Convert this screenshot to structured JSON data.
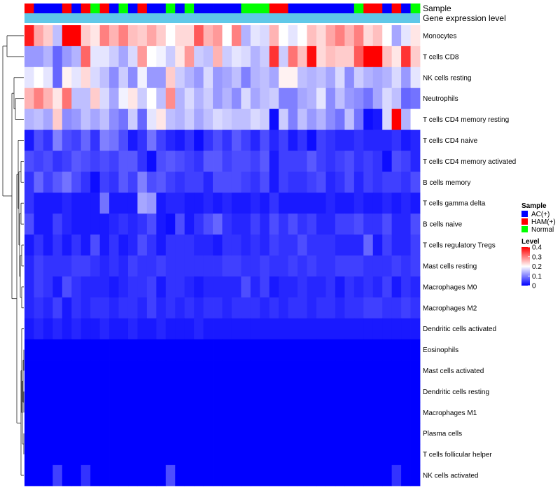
{
  "chart_data": {
    "type": "heatmap",
    "title": "",
    "annotations": {
      "sample_label": "Sample",
      "gene_label": "Gene expression level"
    },
    "legend": {
      "sample_title": "Sample",
      "sample_entries": [
        {
          "label": "AC(+)",
          "color": "#0000ff"
        },
        {
          "label": "HAM(+)",
          "color": "#ff0000"
        },
        {
          "label": "Normal",
          "color": "#00ff00"
        }
      ],
      "level_title": "Level",
      "level_ticks": [
        "0.4",
        "0.3",
        "0.2",
        "0.1",
        "0"
      ],
      "level_range": [
        0,
        0.4
      ],
      "colors": {
        "low": "#0000ff",
        "mid": "#ffffff",
        "high": "#ff0000",
        "gene_bar": "#5fc8e8"
      },
      "placement": "right"
    },
    "samples": [
      "HAM(+)",
      "AC(+)",
      "AC(+)",
      "AC(+)",
      "HAM(+)",
      "AC(+)",
      "HAM(+)",
      "Normal",
      "HAM(+)",
      "AC(+)",
      "Normal",
      "AC(+)",
      "HAM(+)",
      "AC(+)",
      "AC(+)",
      "Normal",
      "AC(+)",
      "Normal",
      "AC(+)",
      "AC(+)",
      "AC(+)",
      "AC(+)",
      "AC(+)",
      "Normal",
      "Normal",
      "Normal",
      "HAM(+)",
      "HAM(+)",
      "AC(+)",
      "AC(+)",
      "AC(+)",
      "AC(+)",
      "AC(+)",
      "AC(+)",
      "AC(+)",
      "Normal",
      "HAM(+)",
      "HAM(+)",
      "AC(+)",
      "HAM(+)",
      "AC(+)",
      "Normal"
    ],
    "rows": [
      {
        "name": "Monocytes",
        "values": [
          0.38,
          0.27,
          0.24,
          0.15,
          0.4,
          0.4,
          0.24,
          0.22,
          0.3,
          0.26,
          0.3,
          0.25,
          0.24,
          0.27,
          0.24,
          0.2,
          0.23,
          0.23,
          0.33,
          0.26,
          0.28,
          0.2,
          0.3,
          0.14,
          0.18,
          0.17,
          0.26,
          0.2,
          0.18,
          0.2,
          0.25,
          0.23,
          0.27,
          0.3,
          0.26,
          0.3,
          0.23,
          0.25,
          0.2,
          0.13,
          0.18,
          0.22
        ]
      },
      {
        "name": "T cells CD8",
        "values": [
          0.12,
          0.12,
          0.14,
          0.08,
          0.12,
          0.14,
          0.32,
          0.18,
          0.18,
          0.16,
          0.13,
          0.17,
          0.28,
          0.2,
          0.19,
          0.16,
          0.22,
          0.28,
          0.16,
          0.15,
          0.26,
          0.16,
          0.18,
          0.17,
          0.14,
          0.16,
          0.36,
          0.16,
          0.31,
          0.25,
          0.39,
          0.23,
          0.25,
          0.24,
          0.24,
          0.33,
          0.4,
          0.4,
          0.25,
          0.22,
          0.36,
          0.24
        ]
      },
      {
        "name": "NK cells resting",
        "values": [
          0.18,
          0.2,
          0.18,
          0.08,
          0.21,
          0.18,
          0.23,
          0.17,
          0.15,
          0.11,
          0.16,
          0.11,
          0.19,
          0.12,
          0.12,
          0.24,
          0.16,
          0.14,
          0.12,
          0.17,
          0.12,
          0.13,
          0.15,
          0.1,
          0.14,
          0.15,
          0.13,
          0.21,
          0.21,
          0.15,
          0.14,
          0.15,
          0.13,
          0.17,
          0.11,
          0.16,
          0.14,
          0.13,
          0.14,
          0.17,
          0.12,
          0.18
        ]
      },
      {
        "name": "Neutrophils",
        "values": [
          0.26,
          0.3,
          0.26,
          0.22,
          0.31,
          0.15,
          0.15,
          0.24,
          0.17,
          0.13,
          0.19,
          0.22,
          0.16,
          0.2,
          0.15,
          0.29,
          0.14,
          0.17,
          0.14,
          0.16,
          0.12,
          0.14,
          0.11,
          0.17,
          0.13,
          0.15,
          0.16,
          0.1,
          0.1,
          0.13,
          0.14,
          0.18,
          0.11,
          0.15,
          0.12,
          0.11,
          0.09,
          0.13,
          0.17,
          0.15,
          0.08,
          0.09
        ]
      },
      {
        "name": "T cells CD4 memory resting",
        "values": [
          0.14,
          0.15,
          0.13,
          0.24,
          0.11,
          0.12,
          0.15,
          0.13,
          0.15,
          0.11,
          0.09,
          0.16,
          0.08,
          0.18,
          0.22,
          0.15,
          0.14,
          0.16,
          0.13,
          0.15,
          0.17,
          0.16,
          0.15,
          0.15,
          0.17,
          0.16,
          0.01,
          0.16,
          0.1,
          0.15,
          0.12,
          0.14,
          0.11,
          0.09,
          0.15,
          0.09,
          0.01,
          0.02,
          0.17,
          0.4,
          0.14,
          0.2
        ]
      },
      {
        "name": "T cells CD4 naive",
        "values": [
          0.02,
          0.06,
          0.04,
          0.1,
          0.06,
          0.05,
          0.08,
          0.04,
          0.1,
          0.09,
          0.06,
          0.02,
          0.04,
          0.09,
          0.05,
          0.03,
          0.02,
          0.04,
          0.01,
          0.04,
          0.06,
          0.04,
          0.07,
          0.05,
          0.03,
          0.06,
          0.03,
          0.05,
          0.02,
          0.04,
          0.01,
          0.05,
          0.04,
          0.03,
          0.03,
          0.04,
          0.03,
          0.03,
          0.03,
          0.04,
          0.02,
          0.03
        ]
      },
      {
        "name": "T cells CD4 memory activated",
        "values": [
          0.06,
          0.05,
          0.06,
          0.04,
          0.05,
          0.07,
          0.06,
          0.05,
          0.06,
          0.05,
          0.07,
          0.07,
          0.04,
          0.01,
          0.06,
          0.07,
          0.06,
          0.05,
          0.04,
          0.07,
          0.07,
          0.05,
          0.06,
          0.06,
          0.05,
          0.07,
          0.02,
          0.05,
          0.05,
          0.05,
          0.07,
          0.05,
          0.04,
          0.05,
          0.06,
          0.04,
          0.05,
          0.04,
          0.01,
          0.06,
          0.05,
          0.03
        ]
      },
      {
        "name": "B cells memory",
        "values": [
          0.04,
          0.08,
          0.05,
          0.07,
          0.09,
          0.06,
          0.04,
          0.01,
          0.05,
          0.04,
          0.07,
          0.05,
          0.1,
          0.06,
          0.07,
          0.05,
          0.04,
          0.05,
          0.05,
          0.03,
          0.06,
          0.06,
          0.06,
          0.05,
          0.04,
          0.06,
          0.02,
          0.05,
          0.04,
          0.04,
          0.05,
          0.06,
          0.03,
          0.04,
          0.06,
          0.03,
          0.05,
          0.04,
          0.05,
          0.05,
          0.04,
          0.06
        ]
      },
      {
        "name": "T cells gamma delta",
        "values": [
          0.04,
          0.02,
          0.02,
          0.02,
          0.03,
          0.02,
          0.02,
          0.02,
          0.09,
          0.02,
          0.02,
          0.02,
          0.13,
          0.12,
          0.02,
          0.03,
          0.03,
          0.02,
          0.02,
          0.03,
          0.02,
          0.03,
          0.02,
          0.02,
          0.03,
          0.02,
          0.04,
          0.02,
          0.02,
          0.02,
          0.02,
          0.02,
          0.03,
          0.02,
          0.02,
          0.03,
          0.02,
          0.02,
          0.03,
          0.02,
          0.03,
          0.02
        ]
      },
      {
        "name": "B cells naive",
        "values": [
          0.06,
          0.02,
          0.02,
          0.05,
          0.03,
          0.02,
          0.02,
          0.02,
          0.02,
          0.03,
          0.04,
          0.03,
          0.04,
          0.06,
          0.02,
          0.01,
          0.06,
          0.02,
          0.04,
          0.06,
          0.08,
          0.04,
          0.03,
          0.03,
          0.05,
          0.03,
          0.06,
          0.04,
          0.06,
          0.04,
          0.05,
          0.03,
          0.03,
          0.05,
          0.05,
          0.06,
          0.04,
          0.04,
          0.06,
          0.03,
          0.03,
          0.06
        ]
      },
      {
        "name": "T cells regulatory  Tregs",
        "values": [
          0.02,
          0.04,
          0.02,
          0.04,
          0.02,
          0.04,
          0.02,
          0.06,
          0.02,
          0.04,
          0.02,
          0.03,
          0.06,
          0.04,
          0.02,
          0.04,
          0.04,
          0.04,
          0.03,
          0.03,
          0.02,
          0.04,
          0.04,
          0.03,
          0.04,
          0.03,
          0.05,
          0.04,
          0.04,
          0.06,
          0.04,
          0.04,
          0.04,
          0.03,
          0.03,
          0.03,
          0.08,
          0.02,
          0.05,
          0.03,
          0.03,
          0.05
        ]
      },
      {
        "name": "Mast cells resting",
        "values": [
          0.03,
          0.05,
          0.04,
          0.04,
          0.04,
          0.05,
          0.05,
          0.04,
          0.03,
          0.04,
          0.03,
          0.05,
          0.04,
          0.04,
          0.05,
          0.04,
          0.04,
          0.04,
          0.04,
          0.04,
          0.04,
          0.05,
          0.05,
          0.04,
          0.04,
          0.05,
          0.04,
          0.04,
          0.05,
          0.04,
          0.05,
          0.04,
          0.04,
          0.05,
          0.05,
          0.05,
          0.04,
          0.04,
          0.04,
          0.05,
          0.04,
          0.05
        ]
      },
      {
        "name": "Macrophages M0",
        "values": [
          0.03,
          0.05,
          0.04,
          0.02,
          0.06,
          0.04,
          0.03,
          0.03,
          0.03,
          0.02,
          0.03,
          0.04,
          0.04,
          0.05,
          0.02,
          0.04,
          0.04,
          0.03,
          0.02,
          0.03,
          0.03,
          0.03,
          0.03,
          0.06,
          0.03,
          0.05,
          0.02,
          0.03,
          0.03,
          0.04,
          0.03,
          0.03,
          0.04,
          0.02,
          0.04,
          0.03,
          0.04,
          0.03,
          0.05,
          0.02,
          0.04,
          0.03
        ]
      },
      {
        "name": "Macrophages M2",
        "values": [
          0.03,
          0.04,
          0.03,
          0.05,
          0.02,
          0.04,
          0.03,
          0.04,
          0.04,
          0.03,
          0.04,
          0.04,
          0.03,
          0.05,
          0.03,
          0.04,
          0.03,
          0.04,
          0.03,
          0.04,
          0.04,
          0.03,
          0.04,
          0.04,
          0.04,
          0.03,
          0.04,
          0.03,
          0.04,
          0.04,
          0.03,
          0.04,
          0.04,
          0.03,
          0.04,
          0.04,
          0.05,
          0.05,
          0.04,
          0.04,
          0.05,
          0.04
        ]
      },
      {
        "name": "Dendritic cells activated",
        "values": [
          0.02,
          0.03,
          0.02,
          0.03,
          0.02,
          0.03,
          0.02,
          0.02,
          0.03,
          0.02,
          0.02,
          0.03,
          0.02,
          0.02,
          0.03,
          0.02,
          0.02,
          0.02,
          0.03,
          0.02,
          0.02,
          0.02,
          0.02,
          0.02,
          0.02,
          0.02,
          0.02,
          0.02,
          0.02,
          0.02,
          0.02,
          0.02,
          0.02,
          0.02,
          0.02,
          0.02,
          0.02,
          0.02,
          0.02,
          0.02,
          0.02,
          0.02
        ]
      },
      {
        "name": "Eosinophils",
        "values": [
          0,
          0,
          0,
          0,
          0,
          0,
          0,
          0,
          0,
          0,
          0,
          0,
          0,
          0,
          0,
          0,
          0,
          0,
          0,
          0,
          0,
          0,
          0,
          0,
          0,
          0,
          0,
          0,
          0,
          0,
          0,
          0,
          0,
          0,
          0,
          0,
          0,
          0,
          0,
          0,
          0,
          0
        ]
      },
      {
        "name": "Mast cells activated",
        "values": [
          0,
          0,
          0,
          0,
          0,
          0,
          0,
          0,
          0,
          0,
          0,
          0,
          0,
          0,
          0,
          0,
          0,
          0,
          0,
          0,
          0,
          0,
          0,
          0,
          0,
          0,
          0,
          0,
          0,
          0,
          0,
          0,
          0,
          0,
          0,
          0,
          0,
          0,
          0,
          0,
          0,
          0
        ]
      },
      {
        "name": "Dendritic cells resting",
        "values": [
          0,
          0,
          0,
          0,
          0,
          0,
          0,
          0,
          0,
          0,
          0,
          0,
          0,
          0,
          0,
          0,
          0,
          0,
          0,
          0,
          0,
          0,
          0,
          0,
          0,
          0,
          0,
          0,
          0,
          0,
          0,
          0,
          0,
          0,
          0,
          0,
          0,
          0,
          0,
          0,
          0,
          0
        ]
      },
      {
        "name": "Macrophages M1",
        "values": [
          0,
          0,
          0,
          0,
          0,
          0,
          0,
          0,
          0,
          0,
          0,
          0,
          0,
          0,
          0,
          0,
          0,
          0,
          0,
          0,
          0,
          0,
          0,
          0,
          0,
          0,
          0,
          0,
          0,
          0,
          0,
          0,
          0,
          0,
          0,
          0,
          0,
          0,
          0,
          0,
          0,
          0
        ]
      },
      {
        "name": "Plasma cells",
        "values": [
          0,
          0,
          0,
          0,
          0,
          0,
          0,
          0,
          0,
          0,
          0,
          0,
          0,
          0,
          0,
          0,
          0,
          0,
          0,
          0,
          0,
          0,
          0,
          0,
          0,
          0,
          0,
          0,
          0,
          0,
          0,
          0,
          0,
          0,
          0,
          0,
          0,
          0,
          0,
          0,
          0,
          0
        ]
      },
      {
        "name": "T cells follicular helper",
        "values": [
          0,
          0,
          0,
          0,
          0,
          0,
          0,
          0,
          0,
          0,
          0,
          0,
          0,
          0,
          0,
          0,
          0,
          0,
          0,
          0,
          0,
          0,
          0,
          0,
          0,
          0,
          0,
          0,
          0,
          0,
          0,
          0,
          0,
          0,
          0,
          0,
          0,
          0,
          0,
          0,
          0,
          0
        ]
      },
      {
        "name": "NK cells activated",
        "values": [
          0,
          0,
          0,
          0.05,
          0,
          0,
          0.04,
          0,
          0,
          0,
          0,
          0,
          0,
          0,
          0,
          0.06,
          0,
          0,
          0,
          0,
          0,
          0,
          0,
          0,
          0,
          0,
          0,
          0,
          0,
          0,
          0,
          0,
          0,
          0,
          0,
          0,
          0,
          0,
          0,
          0.04,
          0,
          0
        ]
      }
    ]
  }
}
